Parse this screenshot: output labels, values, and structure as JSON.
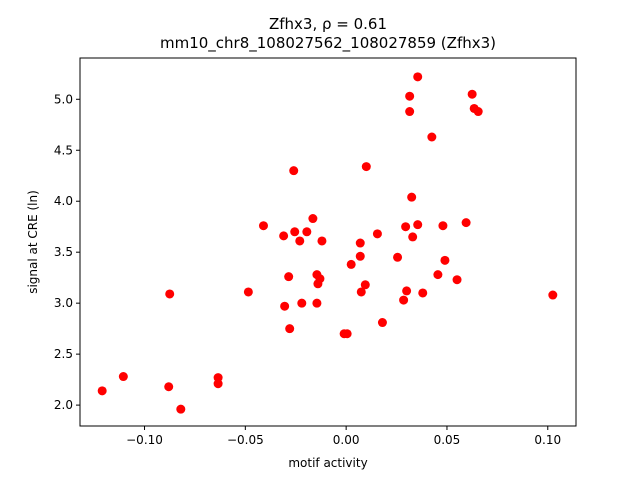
{
  "chart_data": {
    "type": "scatter",
    "title": "Zfhx3, ρ = 0.61",
    "subtitle": "mm10_chr8_108027562_108027859 (Zfhx3)",
    "xlabel": "motif activity",
    "ylabel": "signal at CRE (ln)",
    "xlim": [
      -0.132,
      0.114
    ],
    "ylim": [
      1.795,
      5.405
    ],
    "grid": false,
    "marker_color": "#ff0000",
    "x_ticks": [
      {
        "value": -0.1,
        "label": "−0.10"
      },
      {
        "value": -0.05,
        "label": "−0.05"
      },
      {
        "value": 0.0,
        "label": "0.00"
      },
      {
        "value": 0.05,
        "label": "0.05"
      },
      {
        "value": 0.1,
        "label": "0.10"
      }
    ],
    "y_ticks": [
      {
        "value": 2.0,
        "label": "2.0"
      },
      {
        "value": 2.5,
        "label": "2.5"
      },
      {
        "value": 3.0,
        "label": "3.0"
      },
      {
        "value": 3.5,
        "label": "3.5"
      },
      {
        "value": 4.0,
        "label": "4.0"
      },
      {
        "value": 4.5,
        "label": "4.5"
      },
      {
        "value": 5.0,
        "label": "5.0"
      }
    ],
    "points": [
      {
        "x": -0.121,
        "y": 2.14
      },
      {
        "x": -0.1105,
        "y": 2.28
      },
      {
        "x": -0.088,
        "y": 2.18
      },
      {
        "x": -0.0875,
        "y": 3.09
      },
      {
        "x": -0.082,
        "y": 1.96
      },
      {
        "x": -0.0635,
        "y": 2.21
      },
      {
        "x": -0.0635,
        "y": 2.27
      },
      {
        "x": -0.0485,
        "y": 3.11
      },
      {
        "x": -0.041,
        "y": 3.76
      },
      {
        "x": -0.031,
        "y": 3.66
      },
      {
        "x": -0.0305,
        "y": 2.97
      },
      {
        "x": -0.0285,
        "y": 3.26
      },
      {
        "x": -0.028,
        "y": 2.75
      },
      {
        "x": -0.026,
        "y": 4.3
      },
      {
        "x": -0.0255,
        "y": 3.7
      },
      {
        "x": -0.023,
        "y": 3.61
      },
      {
        "x": -0.022,
        "y": 3.0
      },
      {
        "x": -0.0195,
        "y": 3.7
      },
      {
        "x": -0.0165,
        "y": 3.83
      },
      {
        "x": -0.0145,
        "y": 3.28
      },
      {
        "x": -0.0145,
        "y": 3.0
      },
      {
        "x": -0.014,
        "y": 3.19
      },
      {
        "x": -0.013,
        "y": 3.24
      },
      {
        "x": -0.012,
        "y": 3.61
      },
      {
        "x": -0.001,
        "y": 2.7
      },
      {
        "x": 0.0005,
        "y": 2.7
      },
      {
        "x": 0.0025,
        "y": 3.38
      },
      {
        "x": 0.007,
        "y": 3.59
      },
      {
        "x": 0.007,
        "y": 3.46
      },
      {
        "x": 0.0075,
        "y": 3.11
      },
      {
        "x": 0.0095,
        "y": 3.18
      },
      {
        "x": 0.01,
        "y": 4.34
      },
      {
        "x": 0.0155,
        "y": 3.68
      },
      {
        "x": 0.018,
        "y": 2.81
      },
      {
        "x": 0.0255,
        "y": 3.45
      },
      {
        "x": 0.0285,
        "y": 3.03
      },
      {
        "x": 0.0295,
        "y": 3.75
      },
      {
        "x": 0.03,
        "y": 3.12
      },
      {
        "x": 0.0315,
        "y": 5.03
      },
      {
        "x": 0.0315,
        "y": 4.88
      },
      {
        "x": 0.0325,
        "y": 4.04
      },
      {
        "x": 0.033,
        "y": 3.65
      },
      {
        "x": 0.0355,
        "y": 3.77
      },
      {
        "x": 0.0355,
        "y": 5.22
      },
      {
        "x": 0.038,
        "y": 3.1
      },
      {
        "x": 0.0425,
        "y": 4.63
      },
      {
        "x": 0.0455,
        "y": 3.28
      },
      {
        "x": 0.048,
        "y": 3.76
      },
      {
        "x": 0.049,
        "y": 3.42
      },
      {
        "x": 0.055,
        "y": 3.23
      },
      {
        "x": 0.0595,
        "y": 3.79
      },
      {
        "x": 0.0625,
        "y": 5.05
      },
      {
        "x": 0.0635,
        "y": 4.91
      },
      {
        "x": 0.0655,
        "y": 4.88
      },
      {
        "x": 0.1025,
        "y": 3.08
      }
    ]
  }
}
